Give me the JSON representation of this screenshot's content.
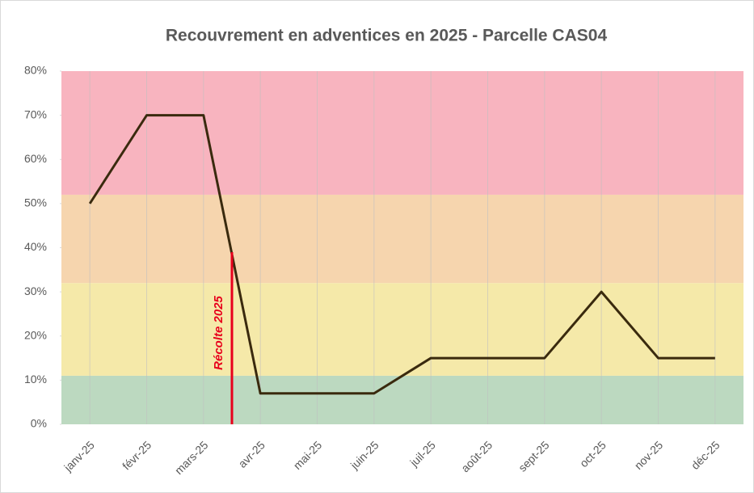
{
  "chart_data": {
    "type": "line",
    "title": "Recouvrement  en adventices  en 2025 - Parcelle  CAS04",
    "categories": [
      "janv-25",
      "févr-25",
      "mars-25",
      "avr-25",
      "mai-25",
      "juin-25",
      "juil-25",
      "août-25",
      "sept-25",
      "oct-25",
      "nov-25",
      "déc-25"
    ],
    "series": [
      {
        "color": "#3a2a0e",
        "values": [
          50,
          70,
          70,
          7,
          7,
          7,
          15,
          15,
          15,
          30,
          15,
          15
        ]
      }
    ],
    "ylim": [
      0,
      80
    ],
    "yticks": [
      {
        "value": 0,
        "label": "0%"
      },
      {
        "value": 10,
        "label": "10%"
      },
      {
        "value": 20,
        "label": "20%"
      },
      {
        "value": 30,
        "label": "30%"
      },
      {
        "value": 40,
        "label": "40%"
      },
      {
        "value": 50,
        "label": "50%"
      },
      {
        "value": 60,
        "label": "60%"
      },
      {
        "value": 70,
        "label": "70%"
      },
      {
        "value": 80,
        "label": "80%"
      }
    ],
    "bands": [
      {
        "from": 0,
        "to": 11,
        "color": "#bcd9c0"
      },
      {
        "from": 11,
        "to": 32,
        "color": "#f5e9a9"
      },
      {
        "from": 32,
        "to": 52,
        "color": "#f6d5ae"
      },
      {
        "from": 52,
        "to": 80,
        "color": "#f8b4bf"
      }
    ],
    "annotation": {
      "text": "Récolte 2025",
      "y": 39,
      "color": "#e8001c"
    },
    "grid": true
  }
}
